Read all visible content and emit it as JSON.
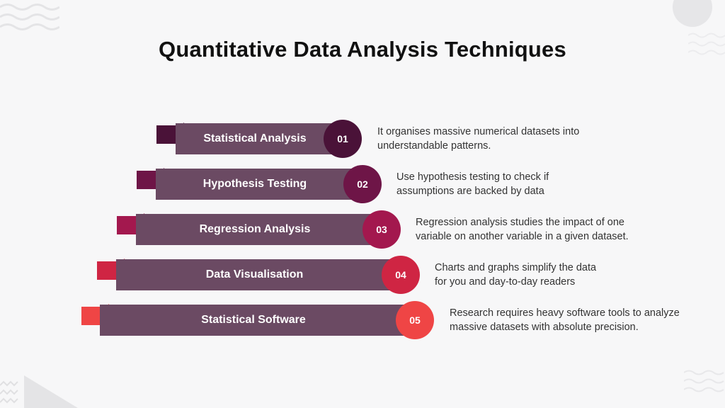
{
  "title": "Quantitative Data Analysis Techniques",
  "steps": [
    {
      "number": "01",
      "label": "Statistical Analysis",
      "color": "#4a1238",
      "lines": [
        "It organises massive numerical datasets into",
        "understandable patterns."
      ]
    },
    {
      "number": "02",
      "label": "Hypothesis Testing",
      "color": "#6e1547",
      "lines": [
        "Use hypothesis testing to check if",
        "assumptions are backed by data"
      ]
    },
    {
      "number": "03",
      "label": "Regression Analysis",
      "color": "#a3184e",
      "lines": [
        "Regression analysis studies the impact of one",
        "variable on another variable in a given dataset."
      ]
    },
    {
      "number": "04",
      "label": "Data Visualisation",
      "color": "#cf2543",
      "lines": [
        "Charts and graphs simplify the data",
        "for you and day-to-day readers"
      ]
    },
    {
      "number": "05",
      "label": "Statistical Software",
      "color": "#ef4545",
      "lines": [
        "Research requires heavy software tools to analyze",
        "massive datasets with absolute precision."
      ]
    }
  ],
  "colors": {
    "band": "#6b4a63",
    "background": "#f7f7f8"
  }
}
